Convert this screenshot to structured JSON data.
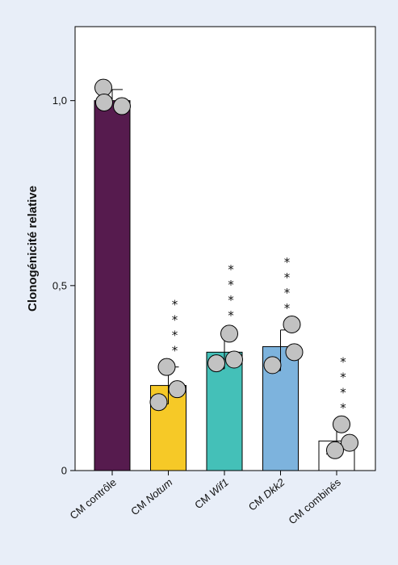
{
  "chart_data": {
    "type": "bar",
    "ylabel": "Clonogénicité relative",
    "ylim": [
      0,
      1.2
    ],
    "yticks": [
      {
        "value": 0,
        "label": "0"
      },
      {
        "value": 0.5,
        "label": "0,5"
      },
      {
        "value": 1.0,
        "label": "1,0"
      }
    ],
    "grid": false,
    "categories": [
      {
        "prefix": "CM ",
        "name": "contrôle",
        "italic": false
      },
      {
        "prefix": "CM ",
        "name": "Notum",
        "italic": true
      },
      {
        "prefix": "CM ",
        "name": "Wif1",
        "italic": true
      },
      {
        "prefix": "CM ",
        "name": "Dkk2",
        "italic": true
      },
      {
        "prefix": "CM ",
        "name": "combinés",
        "italic": false
      }
    ],
    "values": [
      1.0,
      0.23,
      0.32,
      0.335,
      0.08
    ],
    "error_upper": [
      1.03,
      0.28,
      0.375,
      0.38,
      0.12
    ],
    "error_lower": [
      null,
      0.18,
      0.275,
      0.27,
      0.045
    ],
    "points": [
      [
        1.035,
        0.985,
        0.995
      ],
      [
        0.28,
        0.22,
        0.185
      ],
      [
        0.37,
        0.29,
        0.3
      ],
      [
        0.395,
        0.285,
        0.32
      ],
      [
        0.125,
        0.075,
        0.055
      ]
    ],
    "significance": [
      "",
      "****",
      "****",
      "****",
      "****"
    ],
    "colors": [
      "#561b4e",
      "#f6c927",
      "#44c0b8",
      "#7db3dd",
      "#ffffff"
    ],
    "point_color": "#c2c2c2"
  }
}
